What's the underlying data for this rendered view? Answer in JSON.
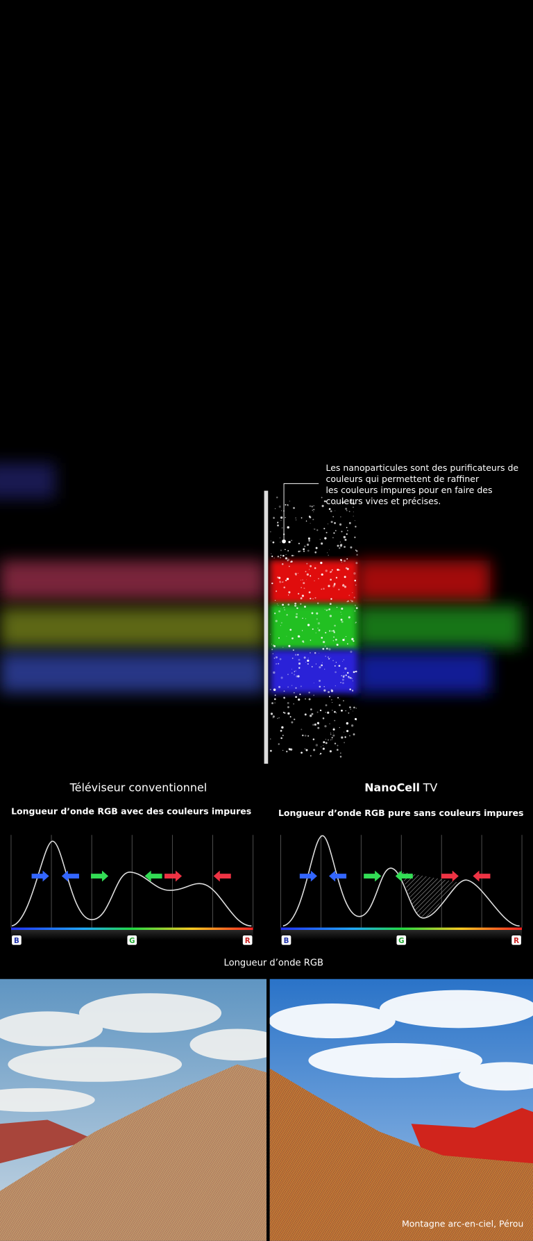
{
  "nanoparticle_callout": {
    "lines": [
      "Les nanoparticules sont des purificateurs de",
      "couleurs qui permettent de raffiner",
      "les couleurs impures pour en faire des",
      "couleurs vives et précises."
    ]
  },
  "comparison": [
    {
      "title": "Téléviseur conventionnel",
      "subtitle": "Longueur d’onde RGB avec des couleurs impures",
      "axis_labels": [
        "B",
        "G",
        "R"
      ]
    },
    {
      "title_brand": "NanoCell",
      "title_suffix": "TV",
      "subtitle": "Longueur d’onde RGB pure sans couleurs impures",
      "axis_labels": [
        "B",
        "G",
        "R"
      ]
    }
  ],
  "x_axis_label": "Longueur d’onde RGB",
  "photo_caption": "Montagne arc-en-ciel, Pérou"
}
